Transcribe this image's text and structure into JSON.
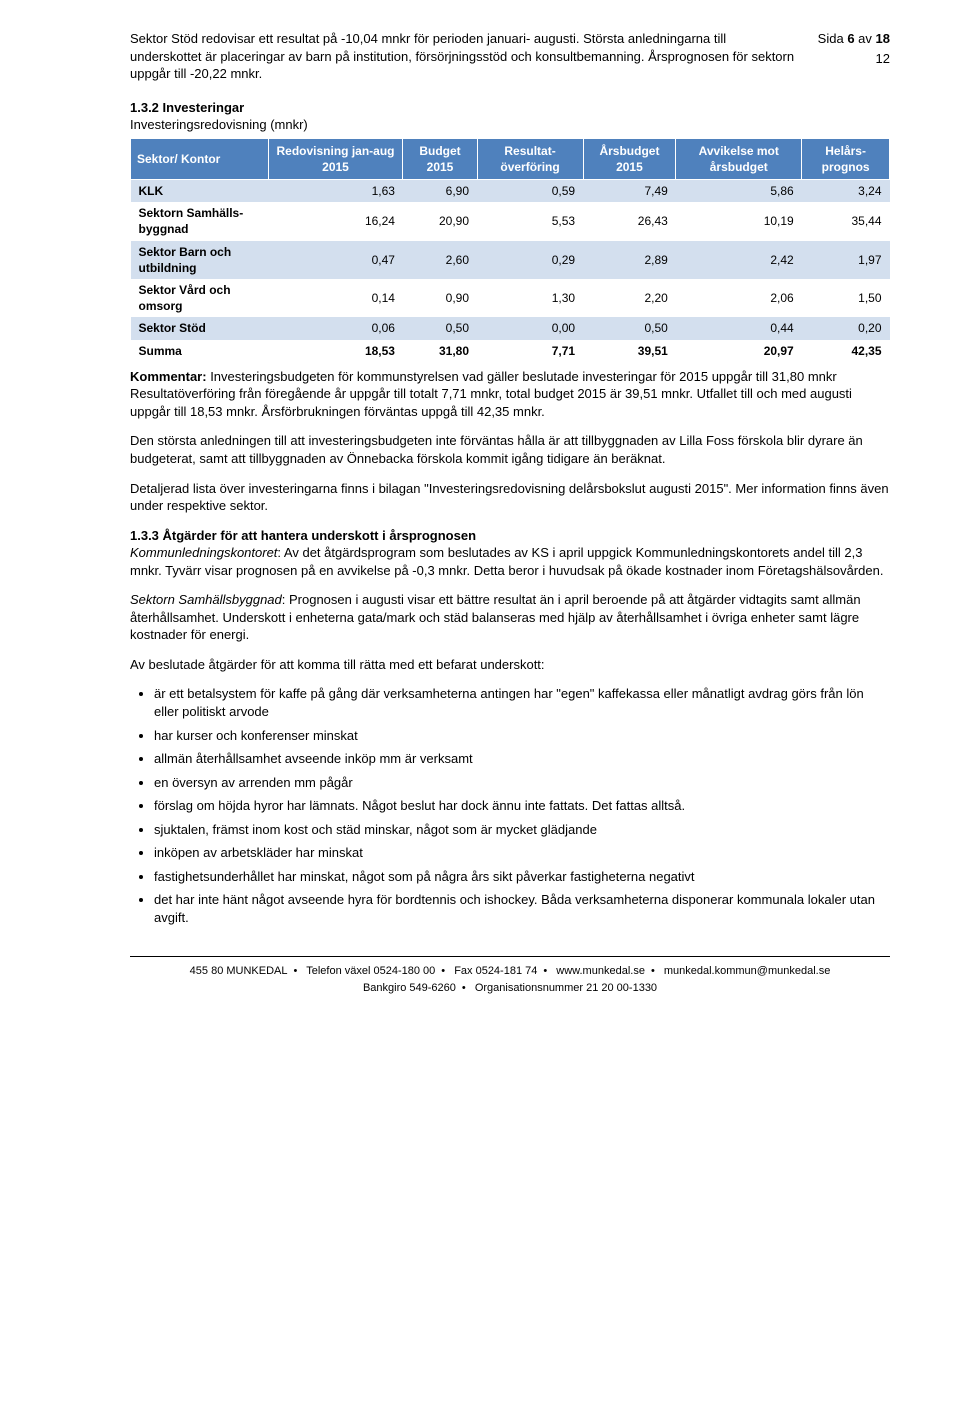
{
  "page_header": {
    "side_label": "Sida",
    "current": "6",
    "av": "av",
    "total": "18",
    "right_num": "12"
  },
  "intro": {
    "p1": "Sektor Stöd redovisar ett resultat på -10,04 mnkr för perioden januari- augusti. Största anledningarna till underskottet är placeringar av barn på institution, försörjningsstöd och konsultbemanning. Årsprognosen för sektorn uppgår till -20,22 mnkr."
  },
  "sec132": {
    "heading": "1.3.2 Investeringar",
    "subline": "Investeringsredovisning (mnkr)"
  },
  "table": {
    "headers": [
      "Sektor/ Kontor",
      "Redovisning jan-aug 2015",
      "Budget 2015",
      "Resultat-överföring",
      "Årsbudget 2015",
      "Avvikelse mot årsbudget",
      "Helårs-prognos"
    ],
    "rows": [
      {
        "c0": "KLK",
        "c1": "1,63",
        "c2": "6,90",
        "c3": "0,59",
        "c4": "7,49",
        "c5": "5,86",
        "c6": "3,24"
      },
      {
        "c0": "Sektorn Samhälls-byggnad",
        "c1": "16,24",
        "c2": "20,90",
        "c3": "5,53",
        "c4": "26,43",
        "c5": "10,19",
        "c6": "35,44"
      },
      {
        "c0": "Sektor Barn och utbildning",
        "c1": "0,47",
        "c2": "2,60",
        "c3": "0,29",
        "c4": "2,89",
        "c5": "2,42",
        "c6": "1,97"
      },
      {
        "c0": "Sektor Vård och omsorg",
        "c1": "0,14",
        "c2": "0,90",
        "c3": "1,30",
        "c4": "2,20",
        "c5": "2,06",
        "c6": "1,50"
      },
      {
        "c0": "Sektor Stöd",
        "c1": "0,06",
        "c2": "0,50",
        "c3": "0,00",
        "c4": "0,50",
        "c5": "0,44",
        "c6": "0,20"
      },
      {
        "c0": "Summa",
        "c1": "18,53",
        "c2": "31,80",
        "c3": "7,71",
        "c4": "39,51",
        "c5": "20,97",
        "c6": "42,35"
      }
    ]
  },
  "kommentar": {
    "label": "Kommentar:",
    "text": " Investeringsbudgeten för kommunstyrelsen vad gäller beslutade investeringar för 2015 uppgår till 31,80 mnkr Resultatöverföring från föregående år uppgår till totalt 7,71 mnkr, total budget 2015 är 39,51 mnkr. Utfallet till och med augusti uppgår till 18,53 mnkr. Årsförbrukningen förväntas uppgå till 42,35 mnkr.",
    "p2": "Den största anledningen till att investeringsbudgeten inte förväntas hålla är att tillbyggnaden av Lilla Foss förskola blir dyrare än budgeterat, samt att tillbyggnaden av Önnebacka förskola kommit igång tidigare än beräknat.",
    "p3": "Detaljerad lista över investeringarna finns i bilagan \"Investeringsredovisning delårsbokslut augusti 2015\". Mer information finns även under respektive sektor."
  },
  "sec133": {
    "heading": "1.3.3 Åtgärder för att hantera underskott i årsprognosen",
    "klk_label": "Kommunledningskontoret",
    "klk_text": ": Av det åtgärdsprogram som beslutades av KS i april uppgick Kommunledningskontorets andel till 2,3 mnkr. Tyvärr visar prognosen på en avvikelse på -0,3 mnkr. Detta beror i huvudsak på ökade kostnader inom Företagshälsovården.",
    "samh_label": "Sektorn Samhällsbyggnad",
    "samh_text": ": Prognosen i augusti visar ett bättre resultat än i april beroende på att åtgärder vidtagits samt allmän återhållsamhet. Underskott i enheterna gata/mark och städ balanseras med hjälp av återhållsamhet i övriga enheter samt lägre kostnader för energi.",
    "list_intro": "Av beslutade åtgärder för att komma till rätta med ett befarat underskott:",
    "items": [
      "är ett betalsystem för kaffe på gång där verksamheterna antingen har \"egen\" kaffekassa eller månatligt avdrag görs från lön eller politiskt arvode",
      "har kurser och konferenser minskat",
      "allmän återhållsamhet avseende inköp mm är verksamt",
      "en översyn av arrenden mm pågår",
      "förslag om höjda hyror har lämnats. Något beslut har dock ännu inte fattats. Det fattas alltså.",
      "sjuktalen, främst inom kost och städ minskar, något som är mycket glädjande",
      "inköpen av arbetskläder har minskat",
      "fastighetsunderhållet har minskat, något som på några års sikt påverkar fastigheterna negativt",
      "det har inte hänt något avseende hyra för bordtennis och ishockey. Båda verksamheterna disponerar kommunala lokaler utan avgift."
    ]
  },
  "footer": {
    "l1a": "455 80 MUNKEDAL",
    "l1b": "Telefon växel 0524-180 00",
    "l1c": "Fax 0524-181 74",
    "l1d": "www.munkedal.se",
    "l1e": "munkedal.kommun@munkedal.se",
    "l2a": "Bankgiro 549-6260",
    "l2b": "Organisationsnummer 21 20 00-1330"
  }
}
